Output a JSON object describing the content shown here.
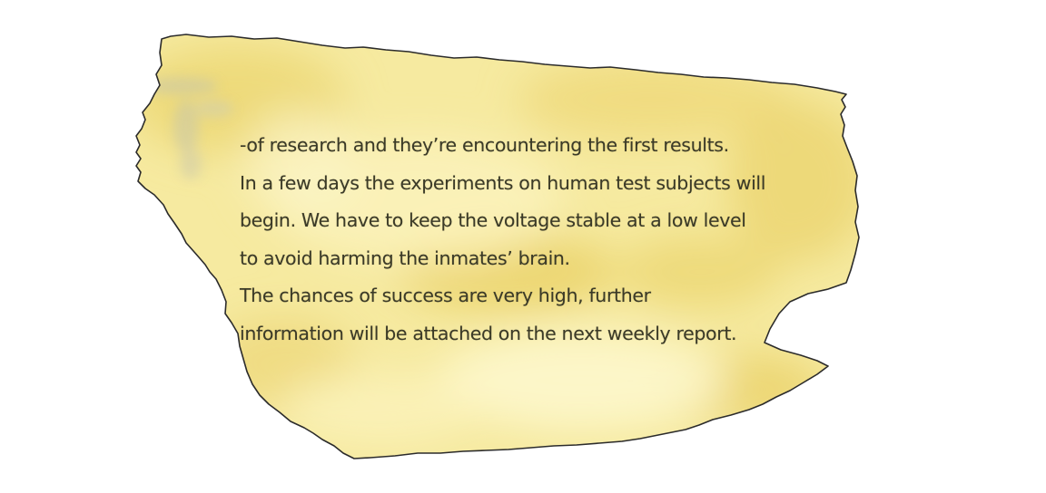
{
  "note": {
    "lines": [
      "-of research and they’re encountering the first results.",
      "In a few days the experiments on human test subjects will",
      "begin. We have to keep the voltage stable at a low level",
      "to avoid harming the inmates’ brain.",
      "The chances of success are very high, further",
      "information will be attached on the next weekly report."
    ]
  },
  "colors": {
    "page_background": "#ffffff",
    "paper_base": "#f6eaa0",
    "paper_highlight": "#fdf6c4",
    "paper_stain": "#e7cf63",
    "paper_edge": "#2b2b2b",
    "text": "#3b3a27"
  }
}
